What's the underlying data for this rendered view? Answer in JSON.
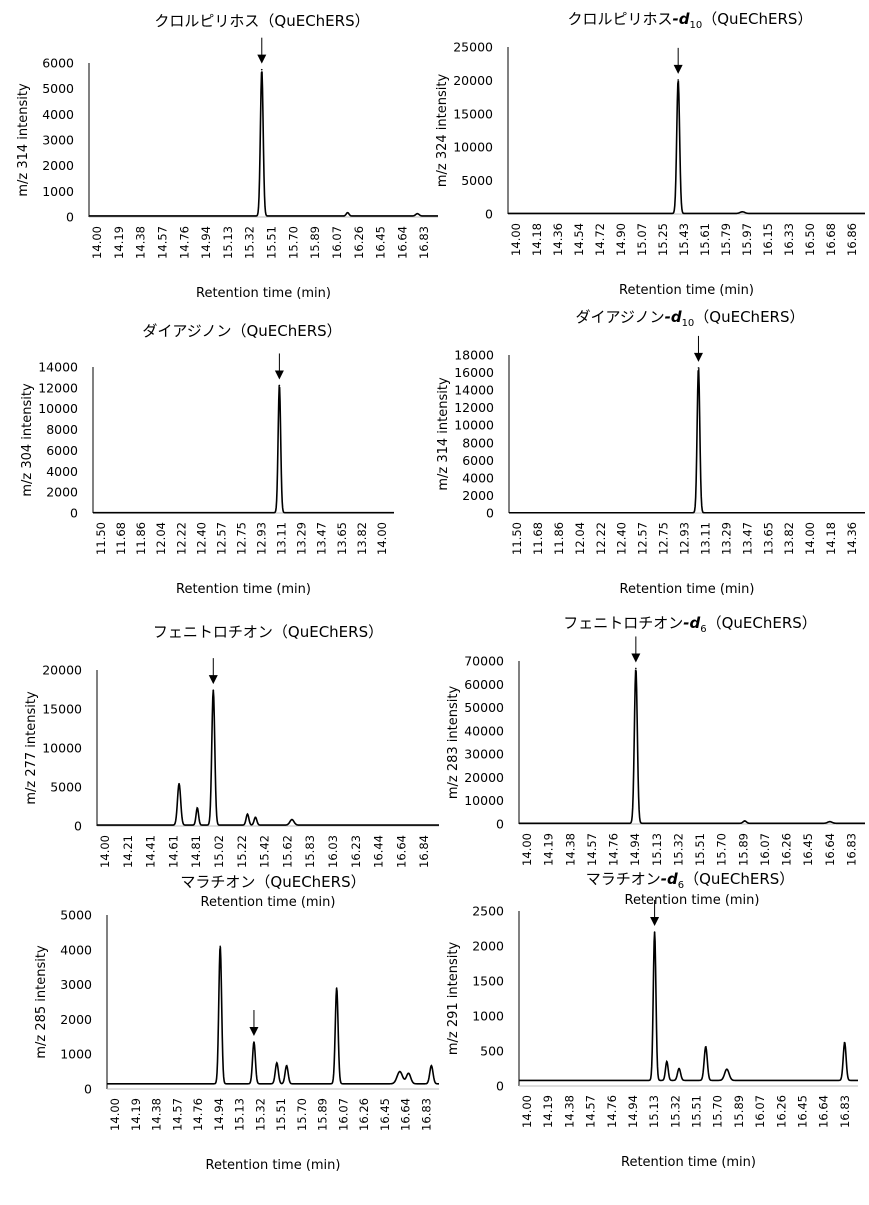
{
  "chart_data": [
    {
      "type": "line",
      "title_main": "クロルピリホス",
      "title_sub": "",
      "title_tail": "（QuEChERS）",
      "ylabel": "m/z 314 intensity",
      "xlabel": "Retention time (min)",
      "ylim": [
        0,
        6000
      ],
      "yticks": [
        0,
        1000,
        2000,
        3000,
        4000,
        5000,
        6000
      ],
      "xlim": [
        14.0,
        17.05
      ],
      "xtick_labels": [
        "14.00",
        "14.19",
        "14.38",
        "14.57",
        "14.76",
        "14.94",
        "15.13",
        "15.32",
        "15.51",
        "15.70",
        "15.89",
        "16.07",
        "16.26",
        "16.45",
        "16.64",
        "16.83"
      ],
      "arrow_x": 15.51,
      "baseline": 40,
      "peaks": [
        {
          "x": 15.51,
          "y": 5700,
          "w": 0.012
        },
        {
          "x": 16.26,
          "y": 130,
          "w": 0.012
        },
        {
          "x": 16.87,
          "y": 90,
          "w": 0.015
        }
      ]
    },
    {
      "type": "line",
      "title_main": "クロルピリホス",
      "title_sub": "10",
      "title_tail": "（QuEChERS）",
      "ylabel": "m/z 324 intensity",
      "xlabel": "Retention time (min)",
      "ylim": [
        0,
        25000
      ],
      "yticks": [
        0,
        5000,
        10000,
        15000,
        20000,
        25000
      ],
      "xlim": [
        14.0,
        17.0
      ],
      "xtick_labels": [
        "14.00",
        "14.18",
        "14.36",
        "14.54",
        "14.72",
        "14.90",
        "15.07",
        "15.25",
        "15.43",
        "15.61",
        "15.79",
        "15.97",
        "16.15",
        "16.33",
        "16.50",
        "16.68",
        "16.86"
      ],
      "arrow_x": 15.43,
      "baseline": 80,
      "peaks": [
        {
          "x": 15.43,
          "y": 20000,
          "w": 0.012
        },
        {
          "x": 15.97,
          "y": 250,
          "w": 0.02
        }
      ]
    },
    {
      "type": "line",
      "title_main": "ダイアジノン",
      "title_sub": "",
      "title_tail": "（QuEChERS）",
      "ylabel": "m/z 304 intensity",
      "xlabel": "Retention time (min)",
      "ylim": [
        0,
        14000
      ],
      "yticks": [
        0,
        2000,
        4000,
        6000,
        8000,
        10000,
        12000,
        14000
      ],
      "xlim": [
        11.5,
        14.1
      ],
      "xtick_labels": [
        "11.50",
        "11.68",
        "11.86",
        "12.04",
        "12.22",
        "12.40",
        "12.57",
        "12.75",
        "12.93",
        "13.11",
        "13.29",
        "13.47",
        "13.65",
        "13.82",
        "14.00"
      ],
      "arrow_x": 13.11,
      "baseline": 30,
      "peaks": [
        {
          "x": 13.11,
          "y": 12200,
          "w": 0.011
        }
      ]
    },
    {
      "type": "line",
      "title_main": "ダイアジノン",
      "title_sub": "10",
      "title_tail": "（QuEChERS）",
      "ylabel": "m/z 314 intensity",
      "xlabel": "Retention time (min)",
      "ylim": [
        0,
        18000
      ],
      "yticks": [
        0,
        2000,
        4000,
        6000,
        8000,
        10000,
        12000,
        14000,
        16000,
        18000
      ],
      "xlim": [
        11.5,
        14.45
      ],
      "xtick_labels": [
        "11.50",
        "11.68",
        "11.86",
        "12.04",
        "12.22",
        "12.40",
        "12.57",
        "12.75",
        "12.93",
        "13.11",
        "13.29",
        "13.47",
        "13.65",
        "13.82",
        "14.00",
        "14.18",
        "14.36"
      ],
      "arrow_x": 13.07,
      "baseline": 30,
      "peaks": [
        {
          "x": 13.07,
          "y": 16500,
          "w": 0.011
        }
      ]
    },
    {
      "type": "line",
      "title_main": "フェニトロチオン",
      "title_sub": "",
      "title_tail": "（QuEChERS）",
      "ylabel": "m/z 277 intensity",
      "xlabel": "Retention time (min)",
      "ylim": [
        0,
        20000
      ],
      "yticks": [
        0,
        5000,
        10000,
        15000,
        20000
      ],
      "xlim": [
        14.0,
        17.0
      ],
      "xtick_labels": [
        "14.00",
        "14.21",
        "14.41",
        "14.61",
        "14.81",
        "15.02",
        "15.22",
        "15.42",
        "15.62",
        "15.83",
        "16.03",
        "16.23",
        "16.44",
        "16.64",
        "16.84"
      ],
      "arrow_x": 15.02,
      "baseline": 120,
      "peaks": [
        {
          "x": 14.72,
          "y": 5300,
          "w": 0.014
        },
        {
          "x": 14.88,
          "y": 2200,
          "w": 0.011
        },
        {
          "x": 15.02,
          "y": 17300,
          "w": 0.013
        },
        {
          "x": 15.32,
          "y": 1400,
          "w": 0.012
        },
        {
          "x": 15.39,
          "y": 1000,
          "w": 0.012
        },
        {
          "x": 15.71,
          "y": 700,
          "w": 0.018
        }
      ]
    },
    {
      "type": "line",
      "title_main": "フェニトロチオン",
      "title_sub": "6",
      "title_tail": "（QuEChERS）",
      "ylabel": "m/z 283 intensity",
      "xlabel": "Retention time (min)",
      "ylim": [
        0,
        70000
      ],
      "yticks": [
        0,
        10000,
        20000,
        30000,
        40000,
        50000,
        60000,
        70000
      ],
      "xlim": [
        14.0,
        17.05
      ],
      "xtick_labels": [
        "14.00",
        "14.19",
        "14.38",
        "14.57",
        "14.76",
        "14.94",
        "15.13",
        "15.32",
        "15.51",
        "15.70",
        "15.89",
        "16.07",
        "16.26",
        "16.45",
        "16.64",
        "16.83"
      ],
      "arrow_x": 15.03,
      "baseline": 300,
      "peaks": [
        {
          "x": 15.03,
          "y": 66500,
          "w": 0.013
        },
        {
          "x": 15.99,
          "y": 1000,
          "w": 0.015
        },
        {
          "x": 16.74,
          "y": 700,
          "w": 0.02
        }
      ]
    },
    {
      "type": "line",
      "title_main": "マラチオン",
      "title_sub": "",
      "title_tail": "（QuEChERS）",
      "ylabel": "m/z 285 intensity",
      "xlabel": "Retention time (min)",
      "ylim": [
        0,
        5000
      ],
      "yticks": [
        0,
        1000,
        2000,
        3000,
        4000,
        5000
      ],
      "xlim": [
        14.0,
        17.05
      ],
      "xtick_labels": [
        "14.00",
        "14.19",
        "14.38",
        "14.57",
        "14.76",
        "14.94",
        "15.13",
        "15.32",
        "15.51",
        "15.70",
        "15.89",
        "16.07",
        "16.26",
        "16.45",
        "16.64",
        "16.83"
      ],
      "arrow_x": 15.35,
      "baseline": 150,
      "peaks": [
        {
          "x": 15.04,
          "y": 3950,
          "w": 0.013
        },
        {
          "x": 15.35,
          "y": 1200,
          "w": 0.013
        },
        {
          "x": 15.56,
          "y": 600,
          "w": 0.014
        },
        {
          "x": 15.65,
          "y": 520,
          "w": 0.014
        },
        {
          "x": 16.11,
          "y": 2750,
          "w": 0.013
        },
        {
          "x": 16.69,
          "y": 350,
          "w": 0.025
        },
        {
          "x": 16.77,
          "y": 300,
          "w": 0.02
        },
        {
          "x": 16.98,
          "y": 520,
          "w": 0.015
        }
      ]
    },
    {
      "type": "line",
      "title_main": "マラチオン",
      "title_sub": "6",
      "title_tail": "（QuEChERS）",
      "ylabel": "m/z 291 intensity",
      "xlabel": "Retention time (min)",
      "ylim": [
        0,
        2500
      ],
      "yticks": [
        0,
        500,
        1000,
        1500,
        2000,
        2500
      ],
      "xlim": [
        14.0,
        17.05
      ],
      "xtick_labels": [
        "14.00",
        "14.19",
        "14.38",
        "14.57",
        "14.76",
        "14.94",
        "15.13",
        "15.32",
        "15.51",
        "15.70",
        "15.89",
        "16.07",
        "16.26",
        "16.45",
        "16.64",
        "16.83"
      ],
      "arrow_x": 15.22,
      "baseline": 80,
      "peaks": [
        {
          "x": 15.22,
          "y": 2120,
          "w": 0.012
        },
        {
          "x": 15.33,
          "y": 270,
          "w": 0.012
        },
        {
          "x": 15.44,
          "y": 170,
          "w": 0.014
        },
        {
          "x": 15.68,
          "y": 480,
          "w": 0.014
        },
        {
          "x": 15.87,
          "y": 160,
          "w": 0.02
        },
        {
          "x": 16.93,
          "y": 540,
          "w": 0.013
        }
      ]
    }
  ]
}
